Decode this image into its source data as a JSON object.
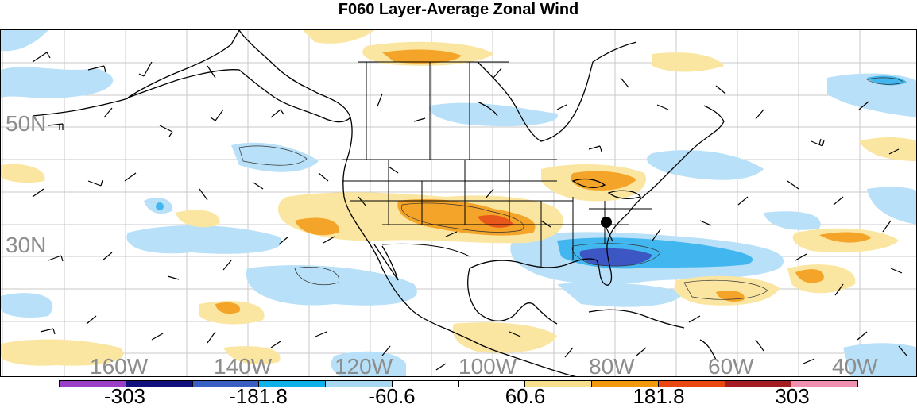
{
  "title": "F060 Layer-Average Zonal Wind",
  "longitude_labels": [
    "160W",
    "140W",
    "120W",
    "100W",
    "80W",
    "60W",
    "40W"
  ],
  "latitude_labels": [
    "50N",
    "30N"
  ],
  "colorbar": {
    "labels": [
      "-303",
      "-181.8",
      "-60.6",
      "60.6",
      "181.8",
      "303"
    ],
    "colors": [
      "#9a3fc6",
      "#11117e",
      "#3a5fc4",
      "#0fb2e8",
      "#a6d8f2",
      "#ffffff",
      "#ffffff",
      "#f7e08c",
      "#f29a0c",
      "#e94713",
      "#a51d23",
      "#f08fb2"
    ]
  },
  "shading_colors": {
    "light_blue": "#b8e0f8",
    "mid_blue": "#42b6ee",
    "dark_blue": "#3c57c4",
    "light_yellow": "#fae6a0",
    "orange": "#f4a428",
    "red_orange": "#e8581a"
  }
}
